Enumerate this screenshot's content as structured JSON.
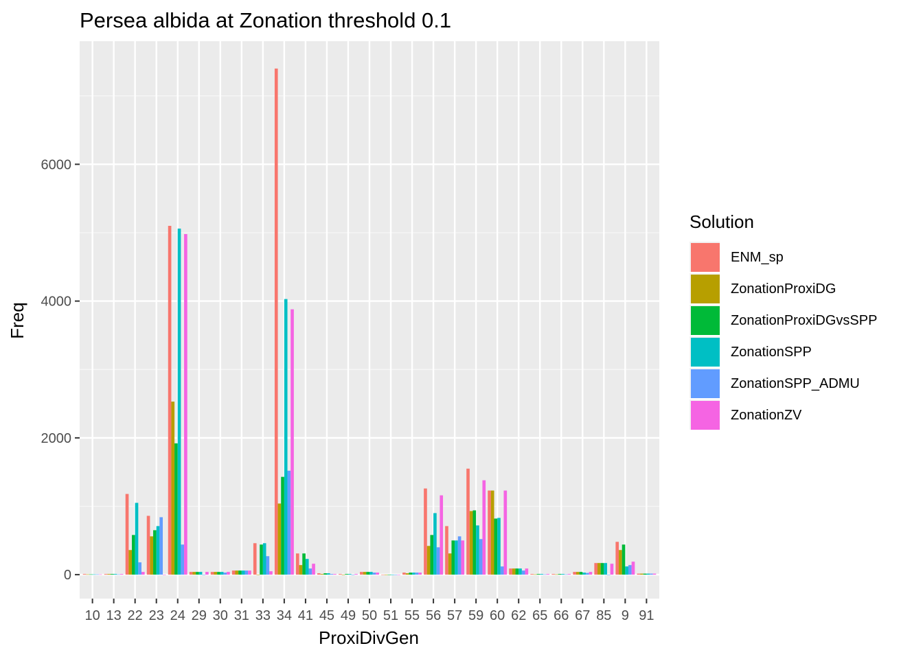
{
  "chart_data": {
    "type": "bar",
    "title": "Persea albida at Zonation threshold 0.1",
    "xlabel": "ProxiDivGen",
    "ylabel": "Freq",
    "ylim": [
      -350,
      7800
    ],
    "yticks": [
      0,
      2000,
      4000,
      6000
    ],
    "grid": true,
    "legend_title": "Solution",
    "legend_position": "right",
    "categories": [
      "10",
      "13",
      "22",
      "23",
      "24",
      "29",
      "30",
      "31",
      "33",
      "34",
      "41",
      "45",
      "49",
      "50",
      "51",
      "55",
      "56",
      "57",
      "59",
      "60",
      "62",
      "65",
      "66",
      "67",
      "85",
      "9",
      "91"
    ],
    "series": [
      {
        "name": "ENM_sp",
        "color": "#F8766D",
        "values": [
          10,
          10,
          1180,
          860,
          5100,
          40,
          40,
          60,
          460,
          7400,
          310,
          20,
          10,
          40,
          0,
          30,
          1260,
          710,
          1550,
          1230,
          90,
          10,
          10,
          40,
          170,
          480,
          15
        ]
      },
      {
        "name": "ZonationProxiDG",
        "color": "#B79F00",
        "values": [
          5,
          10,
          360,
          560,
          2530,
          40,
          40,
          60,
          0,
          1040,
          140,
          10,
          0,
          40,
          0,
          20,
          420,
          310,
          930,
          1230,
          90,
          5,
          5,
          40,
          170,
          360,
          15
        ]
      },
      {
        "name": "ZonationProxiDGvsSPP",
        "color": "#00BA38",
        "values": [
          5,
          10,
          580,
          650,
          1920,
          40,
          40,
          60,
          440,
          1430,
          310,
          20,
          10,
          40,
          0,
          30,
          580,
          500,
          940,
          820,
          90,
          10,
          10,
          40,
          170,
          440,
          15
        ]
      },
      {
        "name": "ZonationSPP",
        "color": "#00BFC4",
        "values": [
          5,
          10,
          1050,
          710,
          5060,
          40,
          40,
          60,
          460,
          4030,
          230,
          20,
          10,
          40,
          0,
          30,
          900,
          500,
          720,
          830,
          90,
          10,
          10,
          30,
          170,
          120,
          15
        ]
      },
      {
        "name": "ZonationSPP_ADMU",
        "color": "#619CFF",
        "values": [
          5,
          5,
          180,
          840,
          440,
          0,
          30,
          60,
          270,
          1520,
          90,
          10,
          0,
          30,
          0,
          30,
          400,
          560,
          520,
          120,
          60,
          5,
          5,
          25,
          0,
          140,
          15
        ]
      },
      {
        "name": "ZonationZV",
        "color": "#F564E3",
        "values": [
          5,
          10,
          40,
          0,
          4980,
          40,
          40,
          60,
          50,
          3880,
          160,
          10,
          10,
          30,
          0,
          30,
          1160,
          500,
          1380,
          1230,
          90,
          10,
          10,
          40,
          160,
          190,
          15
        ]
      }
    ]
  }
}
